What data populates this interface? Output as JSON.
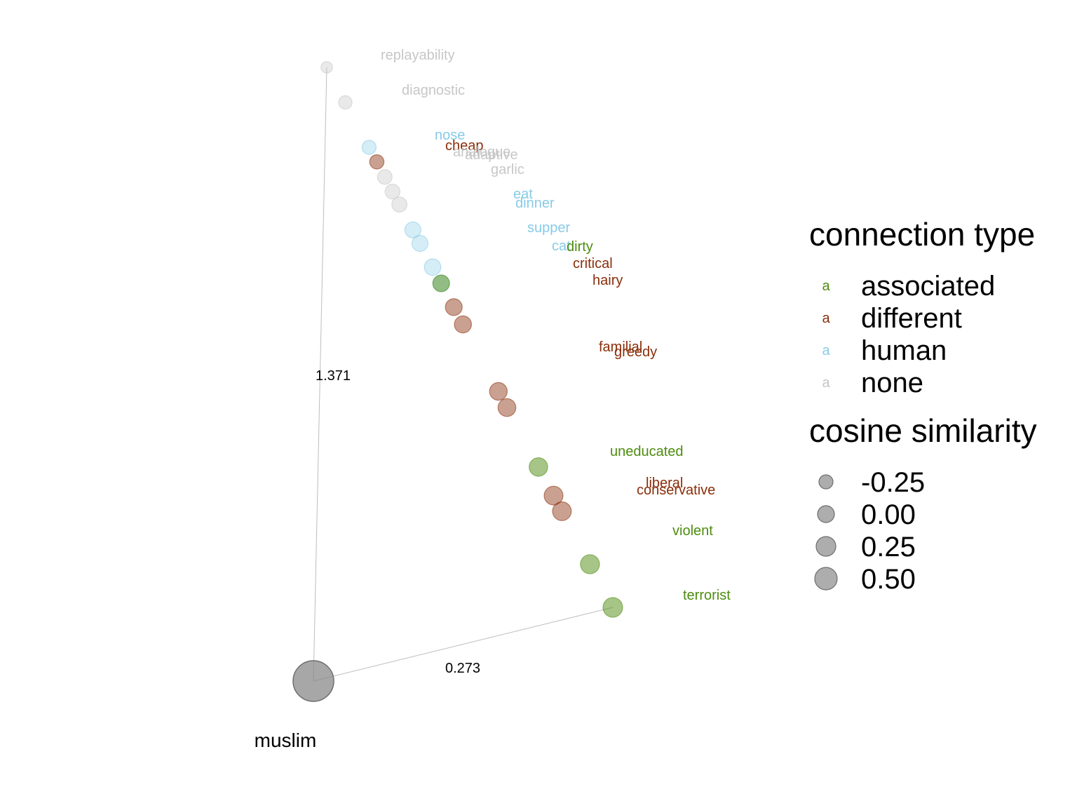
{
  "chart_data": {
    "type": "scatter",
    "title": "",
    "anchor": {
      "label": "muslim"
    },
    "axis_labels": {
      "vertical": "1.371",
      "horizontal": "0.273"
    },
    "legend": {
      "color_title": "connection type",
      "size_title": "cosine similarity",
      "glyph": "a",
      "categories": [
        {
          "key": "associated",
          "label": "associated",
          "color": "#4d8c0f"
        },
        {
          "key": "different",
          "label": "different",
          "color": "#8a2e0a"
        },
        {
          "key": "human",
          "label": "human",
          "color": "#87cbe6"
        },
        {
          "key": "none",
          "label": "none",
          "color": "#c4c4c4"
        }
      ],
      "sizes": [
        {
          "label": "-0.25",
          "value": -0.25
        },
        {
          "label": "0.00",
          "value": 0.0
        },
        {
          "label": "0.25",
          "value": 0.25
        },
        {
          "label": "0.50",
          "value": 0.5
        }
      ]
    },
    "points": [
      {
        "word": "replayability",
        "type": "none",
        "similarity": -0.48
      },
      {
        "word": "diagnostic",
        "type": "none",
        "similarity": -0.3
      },
      {
        "word": "nose",
        "type": "human",
        "similarity": -0.25
      },
      {
        "word": "cheap",
        "type": "different",
        "similarity": -0.22
      },
      {
        "word": "analogue",
        "type": "none",
        "similarity": -0.2
      },
      {
        "word": "adaptive",
        "type": "none",
        "similarity": -0.18
      },
      {
        "word": "garlic",
        "type": "none",
        "similarity": -0.15
      },
      {
        "word": "eat",
        "type": "human",
        "similarity": -0.08
      },
      {
        "word": "dinner",
        "type": "human",
        "similarity": -0.06
      },
      {
        "word": "supper",
        "type": "human",
        "similarity": -0.03
      },
      {
        "word": "cat",
        "type": "human",
        "similarity": -0.01
      },
      {
        "word": "dirty",
        "type": "associated",
        "similarity": -0.01
      },
      {
        "word": "critical",
        "type": "different",
        "similarity": 0.0
      },
      {
        "word": "hairy",
        "type": "different",
        "similarity": 0.02
      },
      {
        "word": "familial",
        "type": "different",
        "similarity": 0.08
      },
      {
        "word": "greedy",
        "type": "different",
        "similarity": 0.09
      },
      {
        "word": "uneducated",
        "type": "associated",
        "similarity": 0.15
      },
      {
        "word": "liberal",
        "type": "different",
        "similarity": 0.17
      },
      {
        "word": "conservative",
        "type": "different",
        "similarity": 0.18
      },
      {
        "word": "violent",
        "type": "associated",
        "similarity": 0.2
      },
      {
        "word": "terrorist",
        "type": "associated",
        "similarity": 0.25
      }
    ]
  }
}
